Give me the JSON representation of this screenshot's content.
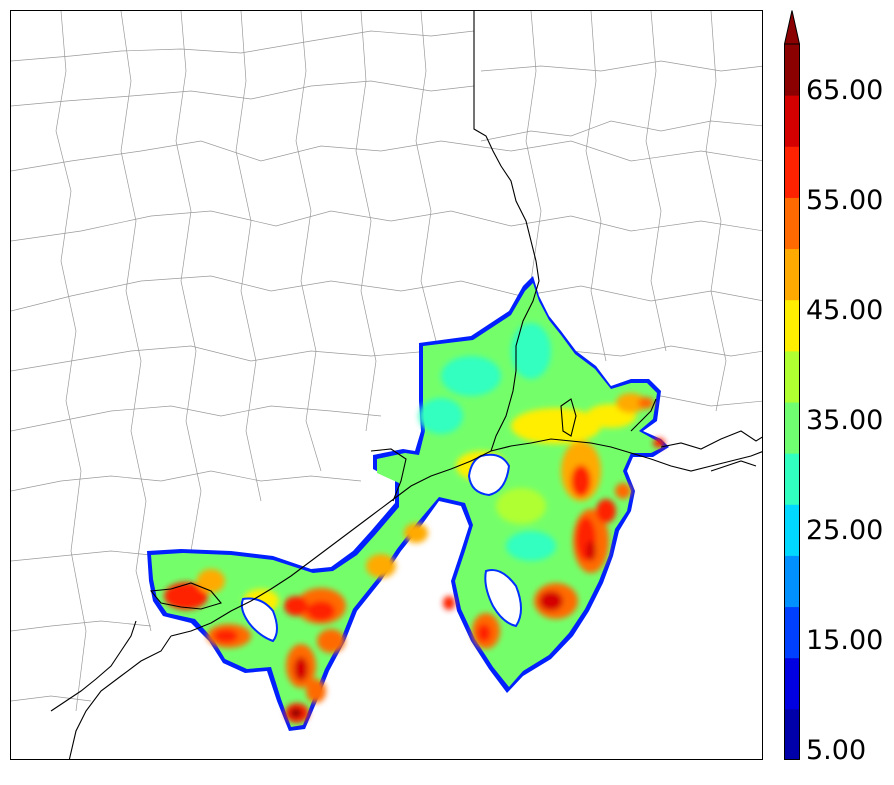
{
  "colorbar": {
    "tick_labels": [
      "5.00",
      "15.00",
      "25.00",
      "35.00",
      "45.00",
      "55.00",
      "65.00"
    ],
    "levels": [
      5,
      10,
      15,
      20,
      25,
      30,
      35,
      40,
      45,
      50,
      55,
      60,
      65,
      70
    ],
    "colors": [
      "#0000aa",
      "#0000e0",
      "#0040ff",
      "#0090ff",
      "#00d8ff",
      "#30ffc0",
      "#70ff70",
      "#b0ff30",
      "#ffee00",
      "#ffaa00",
      "#ff6a00",
      "#ff2200",
      "#d40000",
      "#8b0000"
    ],
    "extend": "max"
  }
}
